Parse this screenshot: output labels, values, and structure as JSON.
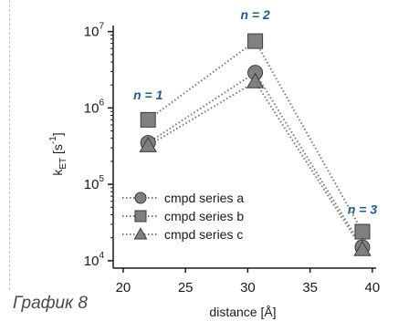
{
  "caption": "График 8",
  "chart_data": {
    "type": "scatter",
    "xlabel": "distance [Å]",
    "ylabel": "kET [s-1]",
    "x_ticks": [
      "20",
      "25",
      "30",
      "35",
      "40"
    ],
    "xlim": [
      19.2,
      40.3
    ],
    "y_scale": "log",
    "ylim": [
      8000,
      12000000
    ],
    "y_ticks": [
      {
        "value": 10000,
        "base": "10",
        "exp": "4"
      },
      {
        "value": 100000,
        "base": "10",
        "exp": "5"
      },
      {
        "value": 1000000,
        "base": "10",
        "exp": "6"
      },
      {
        "value": 10000000,
        "base": "10",
        "exp": "7"
      }
    ],
    "series": [
      {
        "name": "cmpd series a",
        "marker": "circle",
        "x": [
          22.0,
          30.6,
          39.2
        ],
        "y": [
          350000,
          2900000,
          15000
        ]
      },
      {
        "name": "cmpd series b",
        "marker": "square",
        "x": [
          22.0,
          30.6,
          39.2
        ],
        "y": [
          700000,
          7500000,
          24000
        ]
      },
      {
        "name": "cmpd series c",
        "marker": "triangle",
        "x": [
          22.0,
          30.6,
          39.2
        ],
        "y": [
          320000,
          2200000,
          14000
        ]
      }
    ],
    "annotations": [
      {
        "text": "n = 1",
        "x": 22.0,
        "y": 1300000
      },
      {
        "text": "n = 2",
        "x": 30.6,
        "y": 14500000
      },
      {
        "text": "n = 3",
        "x": 39.2,
        "y": 41000
      }
    ],
    "legend_position": "bottom-left",
    "grid": false,
    "colors": {
      "marker_fill": "#808080",
      "marker_stroke": "#3a3a3a",
      "line": "#7a7a7a",
      "annotation": "#1f5b9a"
    }
  }
}
